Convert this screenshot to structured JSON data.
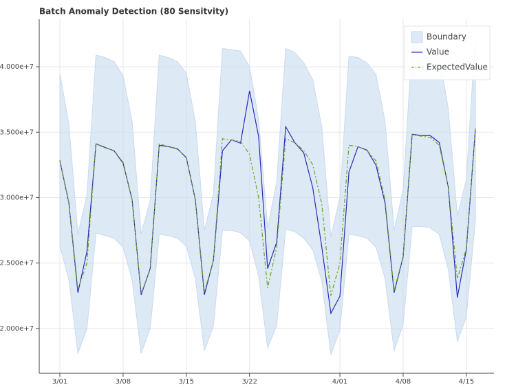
{
  "chart_data": {
    "type": "line",
    "title": "Batch Anomaly Detection (80 Sensitvity)",
    "categories": [
      "3/01",
      null,
      null,
      null,
      null,
      null,
      null,
      "3/08",
      null,
      null,
      null,
      null,
      null,
      null,
      "3/15",
      null,
      null,
      null,
      null,
      null,
      null,
      "3/22",
      null,
      null,
      null,
      null,
      null,
      null,
      null,
      null,
      null,
      "4/01",
      null,
      null,
      null,
      null,
      null,
      null,
      "4/08",
      null,
      null,
      null,
      null,
      null,
      null,
      "4/15",
      null
    ],
    "series": [
      {
        "name": "Boundary",
        "color": "#c6dbef",
        "upper": [
          39500000,
          35600000,
          27200000,
          30200000,
          40900000,
          40700000,
          40400000,
          39300000,
          35800000,
          27200000,
          29800000,
          40900000,
          40700000,
          40400000,
          39500000,
          35800000,
          27500000,
          30300000,
          41400000,
          41300000,
          41200000,
          40000000,
          36000000,
          27700000,
          31200000,
          41400000,
          41100000,
          40300000,
          39000000,
          35400000,
          27000000,
          30000000,
          40800000,
          40700000,
          40300000,
          39400000,
          35800000,
          27500000,
          30600000,
          41800000,
          41600000,
          41500000,
          40800000,
          36800000,
          28600000,
          31400000,
          42400000
        ],
        "lower": [
          26300000,
          23700000,
          18100000,
          20000000,
          27300000,
          27100000,
          26900000,
          26200000,
          23700000,
          18100000,
          20000000,
          27200000,
          27100000,
          26900000,
          26300000,
          23800000,
          18300000,
          20200000,
          27500000,
          27500000,
          27300000,
          26700000,
          24000000,
          18500000,
          20200000,
          27600000,
          27400000,
          26900000,
          26000000,
          23600000,
          18000000,
          19900000,
          27200000,
          27100000,
          26900000,
          26200000,
          23800000,
          18300000,
          20300000,
          27800000,
          27800000,
          27700000,
          27200000,
          24500000,
          19000000,
          20900000,
          28300000
        ]
      },
      {
        "name": "Value",
        "color": "#2a2ab5",
        "values": [
          32840000,
          29580000,
          22740000,
          25890000,
          34110000,
          33840000,
          33580000,
          32630000,
          29840000,
          22580000,
          24580000,
          34000000,
          33900000,
          33740000,
          33050000,
          29840000,
          22580000,
          25210000,
          33580000,
          34420000,
          34160000,
          38160000,
          34680000,
          24580000,
          26580000,
          35420000,
          34210000,
          33420000,
          30740000,
          26200000,
          21160000,
          22470000,
          31950000,
          33890000,
          33630000,
          32470000,
          29580000,
          22740000,
          25470000,
          34840000,
          34740000,
          34740000,
          34210000,
          30790000,
          22370000,
          26050000,
          35260000
        ]
      },
      {
        "name": "ExpectedValue",
        "color": "#6aa121",
        "values": [
          32800000,
          29600000,
          23000000,
          25000000,
          34100000,
          33800000,
          33600000,
          32700000,
          29800000,
          22700000,
          24500000,
          34100000,
          33900000,
          33700000,
          33100000,
          29800000,
          22800000,
          25200000,
          34500000,
          34400000,
          34300000,
          33300000,
          30000000,
          23100000,
          26200000,
          34500000,
          34200000,
          33600000,
          32500000,
          29500000,
          22500000,
          25000000,
          34000000,
          33900000,
          33600000,
          32800000,
          29800000,
          22900000,
          25500000,
          34800000,
          34700000,
          34600000,
          34000000,
          30800000,
          23800000,
          26100000,
          35300000
        ]
      }
    ],
    "ylim": [
      16580000,
      43630000
    ],
    "yticks": [
      {
        "value": 20000000,
        "label": "2.000e+7"
      },
      {
        "value": 25000000,
        "label": "2.500e+7"
      },
      {
        "value": 30000000,
        "label": "3.000e+7"
      },
      {
        "value": 35000000,
        "label": "3.500e+7"
      },
      {
        "value": 40000000,
        "label": "4.000e+7"
      }
    ],
    "grid": true,
    "legend": "top-right"
  }
}
